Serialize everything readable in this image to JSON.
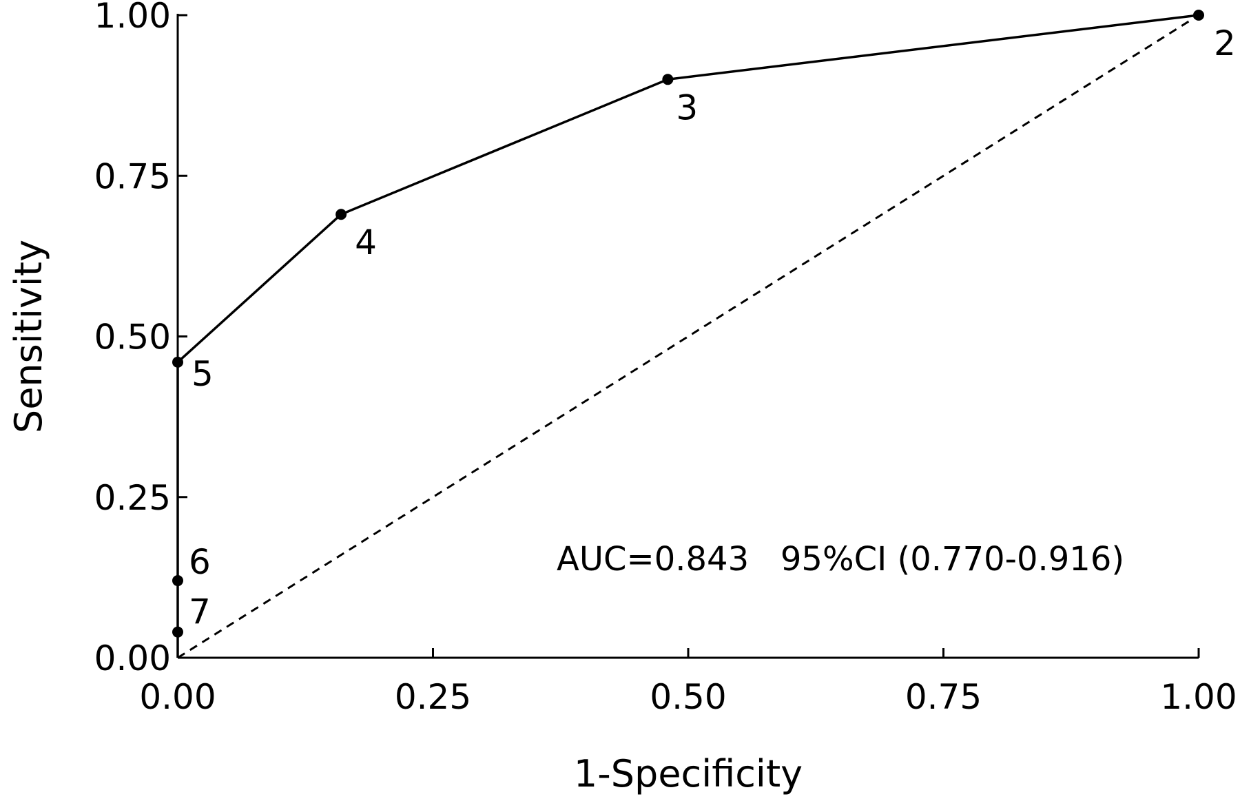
{
  "chart_data": {
    "type": "line",
    "xlabel": "1-Specificity",
    "ylabel": "Sensitivity",
    "xlim": [
      0,
      1
    ],
    "ylim": [
      0,
      1
    ],
    "x_ticks": [
      0,
      0.25,
      0.5,
      0.75,
      1
    ],
    "x_tick_labels": [
      "0.00",
      "0.25",
      "0.50",
      "0.75",
      "1.00"
    ],
    "y_ticks": [
      0,
      0.25,
      0.5,
      0.75,
      1
    ],
    "y_tick_labels": [
      "0.00",
      "0.25",
      "0.50",
      "0.75",
      "1.00"
    ],
    "grid": false,
    "series": [
      {
        "style": "solid",
        "points": [
          {
            "x": 0.0,
            "y": 0.0
          },
          {
            "x": 0.0,
            "y": 0.04,
            "label": "7"
          },
          {
            "x": 0.0,
            "y": 0.12,
            "label": "6"
          },
          {
            "x": 0.0,
            "y": 0.46,
            "label": "5"
          },
          {
            "x": 0.16,
            "y": 0.69,
            "label": "4"
          },
          {
            "x": 0.48,
            "y": 0.9,
            "label": "3"
          },
          {
            "x": 1.0,
            "y": 1.0,
            "label": "2"
          }
        ]
      },
      {
        "style": "dashed",
        "points": [
          {
            "x": 0,
            "y": 0
          },
          {
            "x": 1,
            "y": 1
          }
        ]
      }
    ],
    "annotation": "AUC=0.843   95%CI (0.770-0.916)"
  }
}
